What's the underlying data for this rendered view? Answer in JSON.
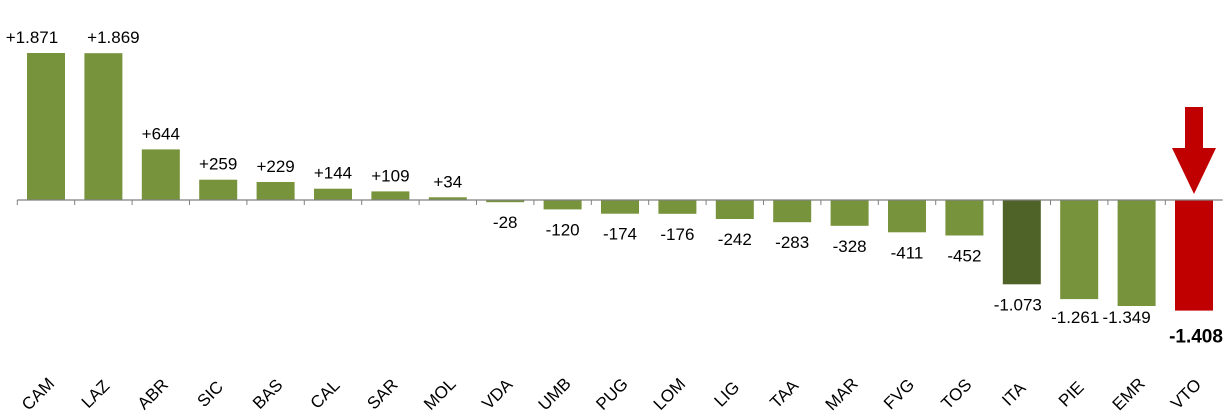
{
  "chart_data": {
    "type": "bar",
    "categories": [
      "CAM",
      "LAZ",
      "ABR",
      "SIC",
      "BAS",
      "CAL",
      "SAR",
      "MOL",
      "VDA",
      "UMB",
      "PUG",
      "LOM",
      "LIG",
      "TAA",
      "MAR",
      "FVG",
      "TOS",
      "ITA",
      "PIE",
      "EMR",
      "VTO"
    ],
    "values": [
      1871,
      1869,
      644,
      259,
      229,
      144,
      109,
      34,
      -28,
      -120,
      -174,
      -176,
      -242,
      -283,
      -328,
      -411,
      -452,
      -1073,
      -1261,
      -1349,
      -1408
    ],
    "data_labels": [
      "+1.871",
      "+1.869",
      "+644",
      "+259",
      "+229",
      "+144",
      "+109",
      "+34",
      "-28",
      "-120",
      "-174",
      "-176",
      "-242",
      "-283",
      "-328",
      "-411",
      "-452",
      "-1.073",
      "-1.261",
      "-1.349",
      "-1.408"
    ],
    "ylim": [
      -1408,
      1871
    ],
    "grid": false,
    "legend": "none",
    "annotation": "down-arrow-icon above VTO",
    "colors": {
      "default": "#77933c",
      "highlight_ita": "#4f6228",
      "highlight_vto": "#c00000",
      "arrow": "#c00000",
      "axis": "#808080"
    }
  }
}
